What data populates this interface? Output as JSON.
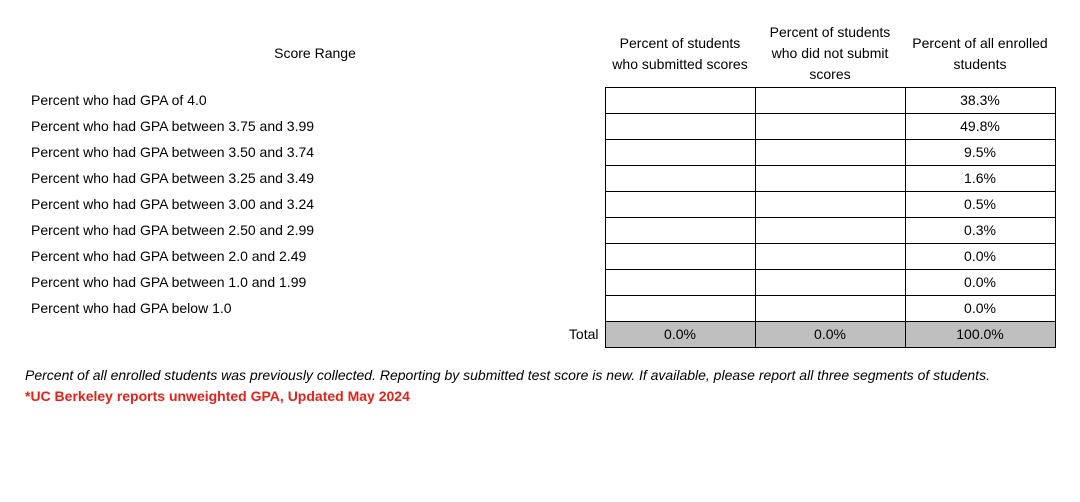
{
  "table": {
    "header": {
      "score_range": "Score Range",
      "col1": "Percent of students who submitted scores",
      "col2": "Percent of students who did not submit scores",
      "col3": "Percent of all enrolled students"
    },
    "rows": [
      {
        "label": "Percent who had GPA of 4.0",
        "c1": "",
        "c2": "",
        "c3": "38.3%"
      },
      {
        "label": "Percent who had GPA between 3.75 and 3.99",
        "c1": "",
        "c2": "",
        "c3": "49.8%"
      },
      {
        "label": "Percent who had GPA between 3.50 and 3.74",
        "c1": "",
        "c2": "",
        "c3": "9.5%"
      },
      {
        "label": "Percent who had GPA between 3.25 and 3.49",
        "c1": "",
        "c2": "",
        "c3": "1.6%"
      },
      {
        "label": "Percent who had GPA between 3.00 and 3.24",
        "c1": "",
        "c2": "",
        "c3": "0.5%"
      },
      {
        "label": "Percent who had GPA between 2.50 and 2.99",
        "c1": "",
        "c2": "",
        "c3": "0.3%"
      },
      {
        "label": "Percent who had GPA between 2.0 and 2.49",
        "c1": "",
        "c2": "",
        "c3": "0.0%"
      },
      {
        "label": "Percent who had GPA between 1.0 and 1.99",
        "c1": "",
        "c2": "",
        "c3": "0.0%"
      },
      {
        "label": "Percent who had GPA below 1.0",
        "c1": "",
        "c2": "",
        "c3": "0.0%"
      }
    ],
    "total": {
      "label": "Total",
      "c1": "0.0%",
      "c2": "0.0%",
      "c3": "100.0%"
    }
  },
  "footnote": "Percent of all enrolled students was previously collected. Reporting by submitted test score is new. If available, please report all three segments of students.",
  "rednote": "*UC Berkeley reports unweighted GPA, Updated May 2024",
  "colors": {
    "total_bg": "#bfbfbf",
    "red": "#e2231a",
    "text": "#000000",
    "bg": "#ffffff"
  }
}
